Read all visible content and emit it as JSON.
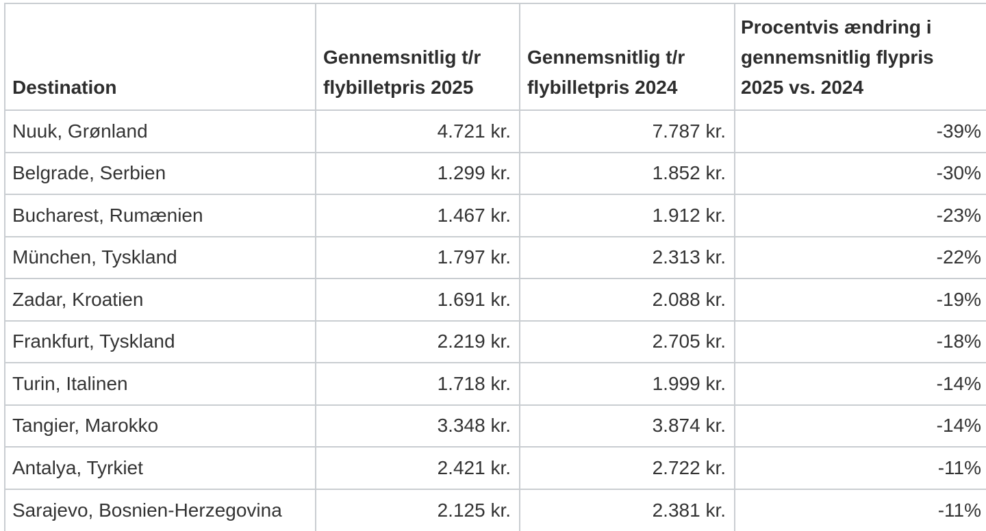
{
  "colors": {
    "background": "#ffffff",
    "grid_border": "#c9cdd1",
    "header_text": "#2d2d2d",
    "body_text": "#333333"
  },
  "chart_data": {
    "type": "table",
    "columns": [
      "Destination",
      "Gennemsnitlig t/r flybilletpris 2025",
      "Gennemsnitlig t/r flybilletpris 2024",
      "Procentvis ændring i gennemsnitlig flypris 2025 vs. 2024"
    ],
    "rows": [
      [
        "Nuuk, Grønland",
        "4.721 kr.",
        "7.787 kr.",
        "-39%"
      ],
      [
        "Belgrade, Serbien",
        "1.299 kr.",
        "1.852 kr.",
        "-30%"
      ],
      [
        "Bucharest, Rumænien",
        "1.467 kr.",
        "1.912 kr.",
        "-23%"
      ],
      [
        "München, Tyskland",
        "1.797 kr.",
        "2.313 kr.",
        "-22%"
      ],
      [
        "Zadar, Kroatien",
        "1.691 kr.",
        "2.088 kr.",
        "-19%"
      ],
      [
        "Frankfurt, Tyskland",
        "2.219 kr.",
        "2.705 kr.",
        "-18%"
      ],
      [
        "Turin, Italinen",
        "1.718 kr.",
        "1.999 kr.",
        "-14%"
      ],
      [
        "Tangier, Marokko",
        "3.348 kr.",
        "3.874 kr.",
        "-14%"
      ],
      [
        "Antalya, Tyrkiet",
        "2.421 kr.",
        "2.722 kr.",
        "-11%"
      ],
      [
        "Sarajevo, Bosnien-Herzegovina",
        "2.125 kr.",
        "2.381 kr.",
        "-11%"
      ]
    ],
    "prices_2025_dkk": [
      4721,
      1299,
      1467,
      1797,
      1691,
      2219,
      1718,
      3348,
      2421,
      2125
    ],
    "prices_2024_dkk": [
      7787,
      1852,
      1912,
      2313,
      2088,
      2705,
      1999,
      3874,
      2722,
      2381
    ],
    "pct_change": [
      -39,
      -30,
      -23,
      -22,
      -19,
      -18,
      -14,
      -14,
      -11,
      -11
    ],
    "layout": "grid table, bold bottom-aligned headers, numeric columns right-aligned"
  }
}
